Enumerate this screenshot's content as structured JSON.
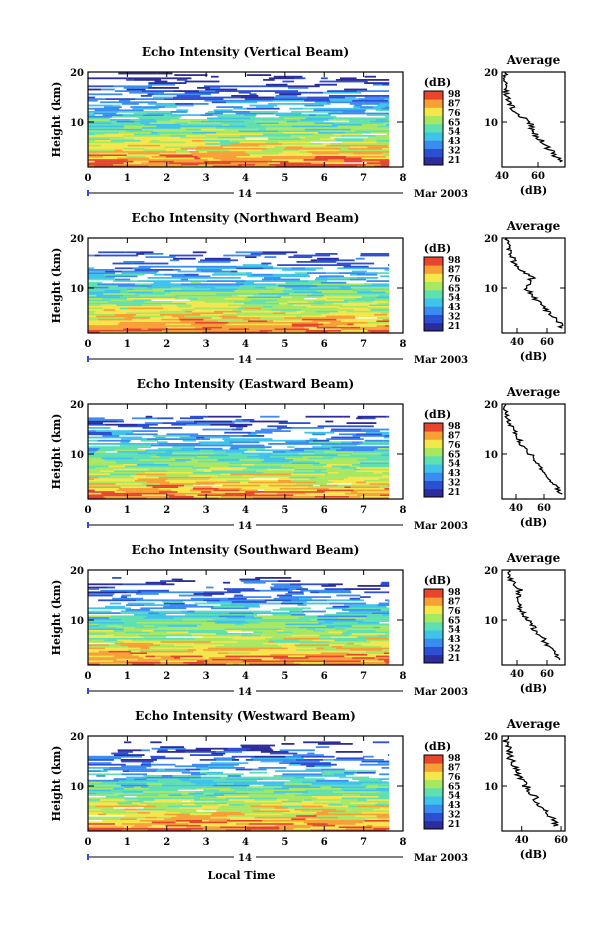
{
  "colorbar": {
    "unit": "(dB)",
    "ticks": [
      "98",
      "87",
      "76",
      "65",
      "54",
      "43",
      "32",
      "21"
    ],
    "colors": [
      "#2c2c9a",
      "#2d4fd3",
      "#3a8cf0",
      "#3fc3ea",
      "#5fe0b0",
      "#a8e860",
      "#f5e64a",
      "#f7a035",
      "#e8452e"
    ]
  },
  "x_axis": {
    "ticks": [
      "0",
      "1",
      "2",
      "3",
      "4",
      "5",
      "6",
      "7",
      "8"
    ],
    "date_day": "14",
    "date_label": "Mar 2003",
    "label": "Local Time"
  },
  "y_axis": {
    "label": "Height (km)",
    "ticks": [
      "10",
      "20"
    ]
  },
  "chart_data": [
    {
      "type": "heatmap",
      "title": "Echo Intensity (Vertical Beam)",
      "xlim": [
        0,
        8
      ],
      "ylim": [
        1,
        20
      ],
      "data_end_hour": 7.65,
      "top_km": 20,
      "profile": {
        "title": "Average",
        "xlabel": "(dB)",
        "xticks": [
          40,
          60
        ],
        "xlim": [
          40,
          75
        ],
        "heights": [
          2,
          4,
          6,
          8,
          10,
          12,
          14,
          16,
          18,
          20
        ],
        "values": [
          73,
          68,
          62,
          58,
          55,
          47,
          44,
          42,
          41,
          41
        ]
      }
    },
    {
      "type": "heatmap",
      "title": "Echo Intensity (Northward Beam)",
      "xlim": [
        0,
        8
      ],
      "ylim": [
        1,
        20
      ],
      "data_end_hour": 7.65,
      "top_km": 17.5,
      "profile": {
        "title": "Average",
        "xlabel": "(dB)",
        "xticks": [
          40,
          60
        ],
        "xlim": [
          30,
          72
        ],
        "heights": [
          2,
          4,
          6,
          8,
          10,
          12,
          14,
          16,
          18,
          20
        ],
        "values": [
          70,
          66,
          58,
          52,
          46,
          50,
          40,
          37,
          35,
          34
        ]
      }
    },
    {
      "type": "heatmap",
      "title": "Echo Intensity (Eastward Beam)",
      "xlim": [
        0,
        8
      ],
      "ylim": [
        1,
        20
      ],
      "data_end_hour": 7.65,
      "top_km": 17.8,
      "profile": {
        "title": "Average",
        "xlabel": "(dB)",
        "xticks": [
          40,
          60
        ],
        "xlim": [
          30,
          75
        ],
        "heights": [
          2,
          4,
          6,
          8,
          10,
          12,
          14,
          16,
          18,
          20
        ],
        "values": [
          72,
          67,
          61,
          56,
          50,
          44,
          40,
          36,
          33,
          32
        ]
      }
    },
    {
      "type": "heatmap",
      "title": "Echo Intensity (Southward Beam)",
      "xlim": [
        0,
        8
      ],
      "ylim": [
        1,
        20
      ],
      "data_end_hour": 7.65,
      "top_km": 18.8,
      "profile": {
        "title": "Average",
        "xlabel": "(dB)",
        "xticks": [
          40,
          60
        ],
        "xlim": [
          30,
          72
        ],
        "heights": [
          2,
          4,
          6,
          8,
          10,
          12,
          14,
          16,
          18,
          20
        ],
        "values": [
          68,
          63,
          58,
          52,
          48,
          42,
          40,
          42,
          36,
          35
        ]
      }
    },
    {
      "type": "heatmap",
      "title": "Echo Intensity (Westward Beam)",
      "xlim": [
        0,
        8
      ],
      "ylim": [
        1,
        20
      ],
      "data_end_hour": 7.65,
      "top_km": 19.2,
      "profile": {
        "title": "Average",
        "xlabel": "(dB)",
        "xticks": [
          40,
          60
        ],
        "xlim": [
          30,
          62
        ],
        "heights": [
          2,
          4,
          6,
          8,
          10,
          12,
          14,
          16,
          18,
          20
        ],
        "values": [
          58,
          55,
          50,
          46,
          42,
          38,
          36,
          34,
          33,
          32
        ]
      }
    }
  ]
}
